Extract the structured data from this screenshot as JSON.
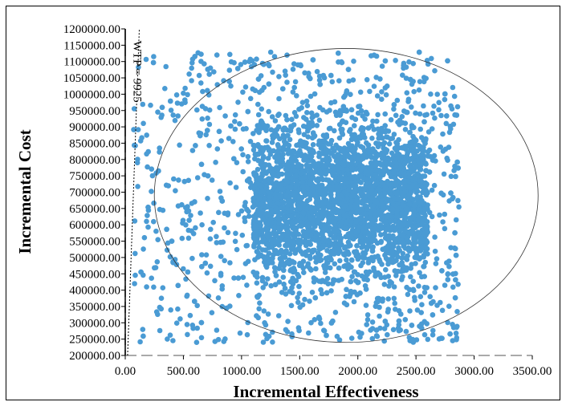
{
  "chart_data": {
    "type": "scatter",
    "xlabel": "Incremental Effectiveness",
    "ylabel": "Incremental Cost",
    "x_ticks": [
      "0.00",
      "500.00",
      "1000.00",
      "1500.00",
      "2000.00",
      "2500.00",
      "3000.00",
      "3500.00"
    ],
    "y_ticks": [
      "200000.00",
      "250000.00",
      "300000.00",
      "350000.00",
      "400000.00",
      "450000.00",
      "500000.00",
      "550000.00",
      "600000.00",
      "650000.00",
      "700000.00",
      "750000.00",
      "800000.00",
      "850000.00",
      "900000.00",
      "950000.00",
      "1000000.00",
      "1050000.00",
      "1100000.00",
      "1150000.00",
      "1200000.00"
    ],
    "xlim": [
      0,
      3500
    ],
    "ylim": [
      200000,
      1200000
    ],
    "grid": false,
    "point_color": "#4a9bd4",
    "wtp_line": {
      "label": "WTP = 9925",
      "slope": 9925
    },
    "confidence_ellipse": {
      "center": [
        1900,
        690000
      ],
      "radius_x": 1650,
      "radius_y": 450000
    },
    "series": [
      {
        "cloud": {
          "count": 4200,
          "x_range": [
            50,
            2870
          ],
          "y_range": [
            240000,
            1130000
          ],
          "dense_x": [
            1100,
            2600
          ],
          "dense_y": [
            350000,
            1000000
          ]
        }
      }
    ]
  }
}
